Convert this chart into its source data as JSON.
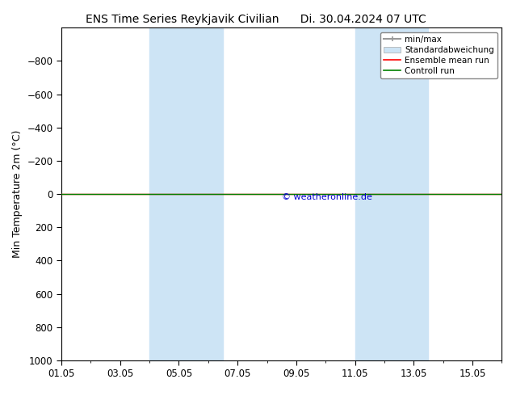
{
  "title_left": "ENS Time Series Reykjavik Civilian",
  "title_right": "Di. 30.04.2024 07 UTC",
  "ylabel": "Min Temperature 2m (°C)",
  "watermark": "© weatheronline.de",
  "ylim_bottom": 1000,
  "ylim_top": -1000,
  "yticks": [
    -800,
    -600,
    -400,
    -200,
    0,
    200,
    400,
    600,
    800,
    1000
  ],
  "xlim_left": 0,
  "xlim_right": 15,
  "xtick_positions": [
    0,
    2,
    4,
    6,
    8,
    10,
    12,
    14
  ],
  "xtick_labels": [
    "01.05",
    "03.05",
    "05.05",
    "07.05",
    "09.05",
    "11.05",
    "13.05",
    "15.05"
  ],
  "shaded_regions": [
    {
      "start": 3,
      "end": 5.5
    },
    {
      "start": 10,
      "end": 12.5
    }
  ],
  "green_line_y": 0,
  "green_line_color": "#008000",
  "red_line_y": 0,
  "red_line_color": "#ff0000",
  "background_color": "#ffffff",
  "plot_bg_color": "#ffffff",
  "shade_color": "#cde4f5",
  "legend_items": [
    {
      "label": "min/max",
      "color": "#999999",
      "lw": 1.5,
      "type": "line_bar"
    },
    {
      "label": "Standardabweichung",
      "color": "#cde4f5",
      "lw": 6,
      "type": "patch"
    },
    {
      "label": "Ensemble mean run",
      "color": "#ff0000",
      "lw": 1.2,
      "type": "line"
    },
    {
      "label": "Controll run",
      "color": "#008000",
      "lw": 1.2,
      "type": "line"
    }
  ],
  "tick_label_fontsize": 8.5,
  "axis_label_fontsize": 9,
  "title_fontsize": 10,
  "watermark_color": "#0000cc",
  "watermark_fontsize": 8
}
